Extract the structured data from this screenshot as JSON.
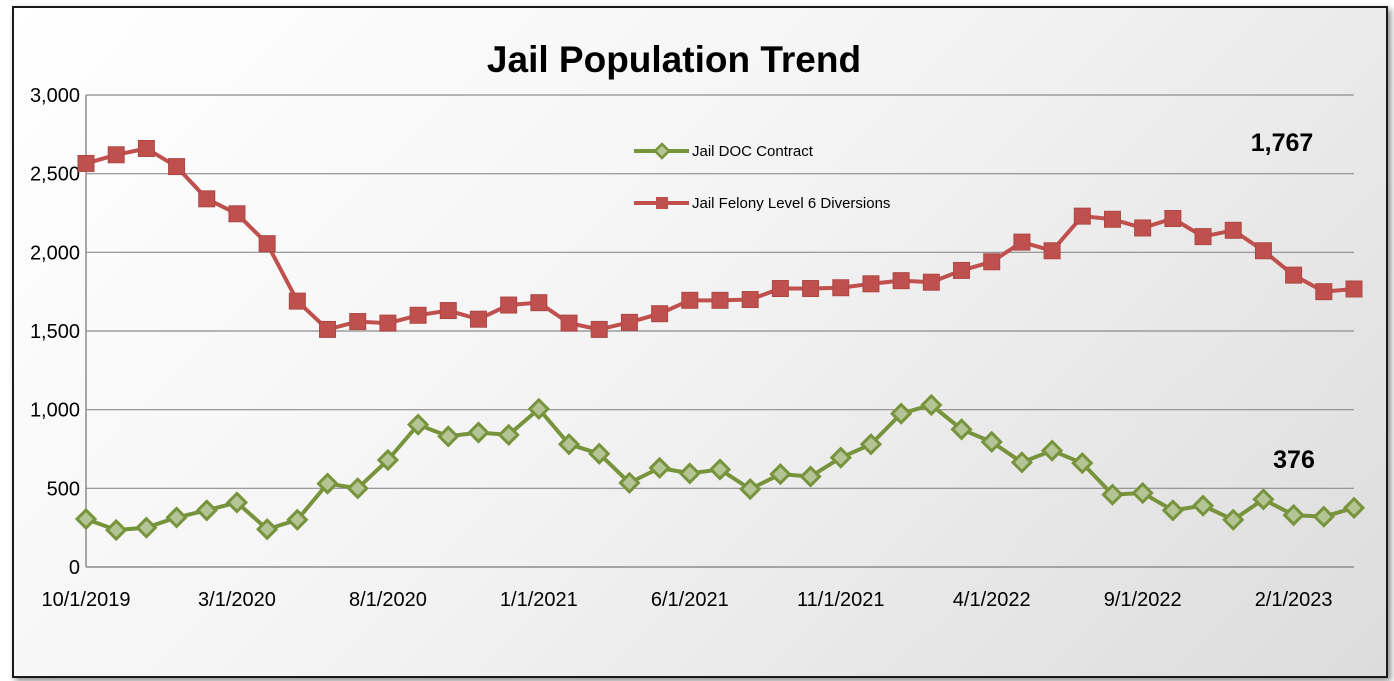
{
  "chart_data": {
    "type": "line",
    "title": "Jail Population Trend",
    "xlabel": "",
    "ylabel": "",
    "ylim": [
      0,
      3000
    ],
    "yticks": [
      "0",
      "500",
      "1,000",
      "1,500",
      "2,000",
      "2,500",
      "3,000"
    ],
    "xticks": [
      "10/1/2019",
      "3/1/2020",
      "8/1/2020",
      "1/1/2021",
      "6/1/2021",
      "11/1/2021",
      "4/1/2022",
      "9/1/2022",
      "2/1/2023"
    ],
    "grid": true,
    "legend_position": "top-center",
    "x": [
      "10/1/2019",
      "11/1/2019",
      "12/1/2019",
      "1/1/2020",
      "2/1/2020",
      "3/1/2020",
      "4/1/2020",
      "5/1/2020",
      "6/1/2020",
      "7/1/2020",
      "8/1/2020",
      "9/1/2020",
      "10/1/2020",
      "11/1/2020",
      "12/1/2020",
      "1/1/2021",
      "2/1/2021",
      "3/1/2021",
      "4/1/2021",
      "5/1/2021",
      "6/1/2021",
      "7/1/2021",
      "8/1/2021",
      "9/1/2021",
      "10/1/2021",
      "11/1/2021",
      "12/1/2021",
      "1/1/2022",
      "2/1/2022",
      "3/1/2022",
      "4/1/2022",
      "5/1/2022",
      "6/1/2022",
      "7/1/2022",
      "8/1/2022",
      "9/1/2022",
      "10/1/2022",
      "11/1/2022",
      "12/1/2022",
      "1/1/2023",
      "2/1/2023",
      "3/1/2023",
      "4/1/2023"
    ],
    "series": [
      {
        "name": "Jail DOC Contract",
        "color": "#77933c",
        "marker": "diamond",
        "values": [
          305,
          235,
          250,
          315,
          360,
          410,
          240,
          300,
          530,
          500,
          680,
          905,
          830,
          855,
          840,
          1005,
          780,
          720,
          535,
          630,
          595,
          620,
          495,
          590,
          575,
          695,
          780,
          975,
          1030,
          875,
          795,
          665,
          740,
          660,
          460,
          470,
          360,
          390,
          300,
          430,
          330,
          320,
          376
        ],
        "end_label": "376"
      },
      {
        "name": "Jail Felony Level 6 Diversions",
        "color": "#c0504d",
        "marker": "square",
        "values": [
          2565,
          2620,
          2660,
          2545,
          2340,
          2245,
          2055,
          1690,
          1510,
          1560,
          1550,
          1600,
          1630,
          1575,
          1665,
          1680,
          1550,
          1510,
          1555,
          1610,
          1695,
          1695,
          1700,
          1770,
          1770,
          1775,
          1800,
          1820,
          1810,
          1885,
          1940,
          2065,
          2010,
          2230,
          2210,
          2155,
          2215,
          2100,
          2140,
          2010,
          1855,
          1750,
          1767
        ],
        "end_label": "1,767"
      }
    ]
  }
}
